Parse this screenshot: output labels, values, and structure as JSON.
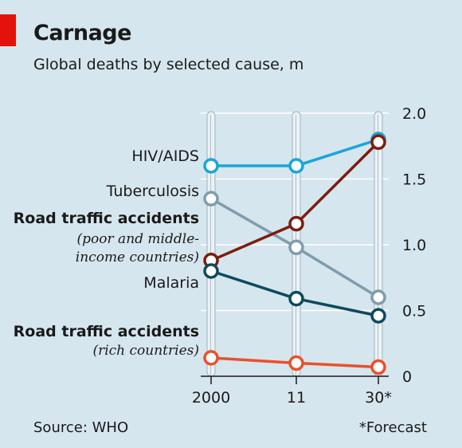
{
  "header": {
    "title": "Carnage",
    "subtitle": "Global deaths by selected cause, m"
  },
  "footer": {
    "source": "Source: WHO",
    "footnote": "*Forecast"
  },
  "colors": {
    "background": "#d6e6ee",
    "brand_red": "#e3120b",
    "hiv": "#1ba5d8",
    "tb": "#7f9dac",
    "road_poor": "#7b1d0f",
    "malaria": "#0d4a5c",
    "road_rich": "#e8512c"
  },
  "chart_data": {
    "type": "line",
    "title": "Carnage",
    "subtitle": "Global deaths by selected cause, m",
    "x": [
      "2000",
      "11",
      "30*"
    ],
    "ylim": [
      0,
      2.0
    ],
    "yticks": [
      "0",
      "0.5",
      "1.0",
      "1.5",
      "2.0"
    ],
    "ytick_values": [
      0,
      0.5,
      1.0,
      1.5,
      2.0
    ],
    "grid": true,
    "series": [
      {
        "name": "HIV/AIDS",
        "sublabel": "",
        "bold": false,
        "color": "#1ba5d8",
        "values": [
          1.6,
          1.6,
          1.8
        ]
      },
      {
        "name": "Tuberculosis",
        "sublabel": "",
        "bold": false,
        "color": "#7f9dac",
        "values": [
          1.35,
          0.98,
          0.6
        ]
      },
      {
        "name": "Road traffic accidents",
        "sublabel": "(poor and middle-income countries)",
        "bold": true,
        "color": "#7b1d0f",
        "values": [
          0.88,
          1.16,
          1.78
        ]
      },
      {
        "name": "Malaria",
        "sublabel": "",
        "bold": false,
        "color": "#0d4a5c",
        "values": [
          0.8,
          0.59,
          0.46
        ]
      },
      {
        "name": "Road traffic accidents",
        "sublabel": "(rich countries)",
        "bold": true,
        "color": "#e8512c",
        "values": [
          0.14,
          0.1,
          0.07
        ]
      }
    ]
  }
}
